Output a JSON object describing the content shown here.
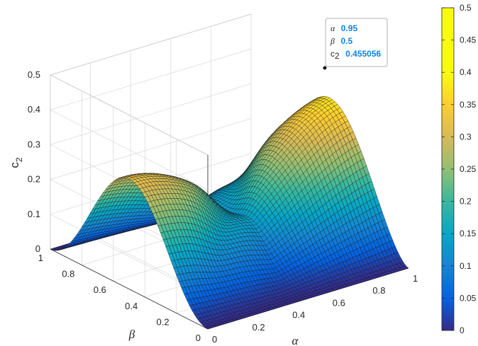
{
  "chart_data": {
    "type": "surface",
    "zlabel": "c",
    "zlabel_sub": "2",
    "xlabel": "α",
    "ylabel": "β",
    "xlim": [
      0,
      1
    ],
    "ylim": [
      0,
      1
    ],
    "zlim": [
      0,
      0.5
    ],
    "clim": [
      0,
      0.5
    ],
    "colormap": "parula",
    "grid": true,
    "x_ticks": [
      "0",
      "0.2",
      "0.4",
      "0.6",
      "0.8",
      "1"
    ],
    "y_ticks": [
      "0",
      "0.2",
      "0.4",
      "0.6",
      "0.8",
      "1"
    ],
    "z_ticks": [
      "0",
      "0.1",
      "0.2",
      "0.3",
      "0.4",
      "0.5"
    ],
    "colorbar_ticks": [
      "0",
      "0.05",
      "0.1",
      "0.15",
      "0.2",
      "0.25",
      "0.3",
      "0.35",
      "0.4",
      "0.45",
      "0.5"
    ],
    "datatip": {
      "alpha_label": "α",
      "alpha_value": "0.95",
      "beta_label": "β",
      "beta_value": "0.5",
      "c_label": "c",
      "c_sub": "2",
      "c_value": "0.455056"
    },
    "sample_points": [
      {
        "alpha": 0.95,
        "beta": 0.5,
        "c2": 0.455056
      },
      {
        "alpha": 0.0,
        "beta": 0.5,
        "c2": 0.0
      },
      {
        "alpha": 0.5,
        "beta": 0.0,
        "c2": 0.0
      }
    ]
  }
}
